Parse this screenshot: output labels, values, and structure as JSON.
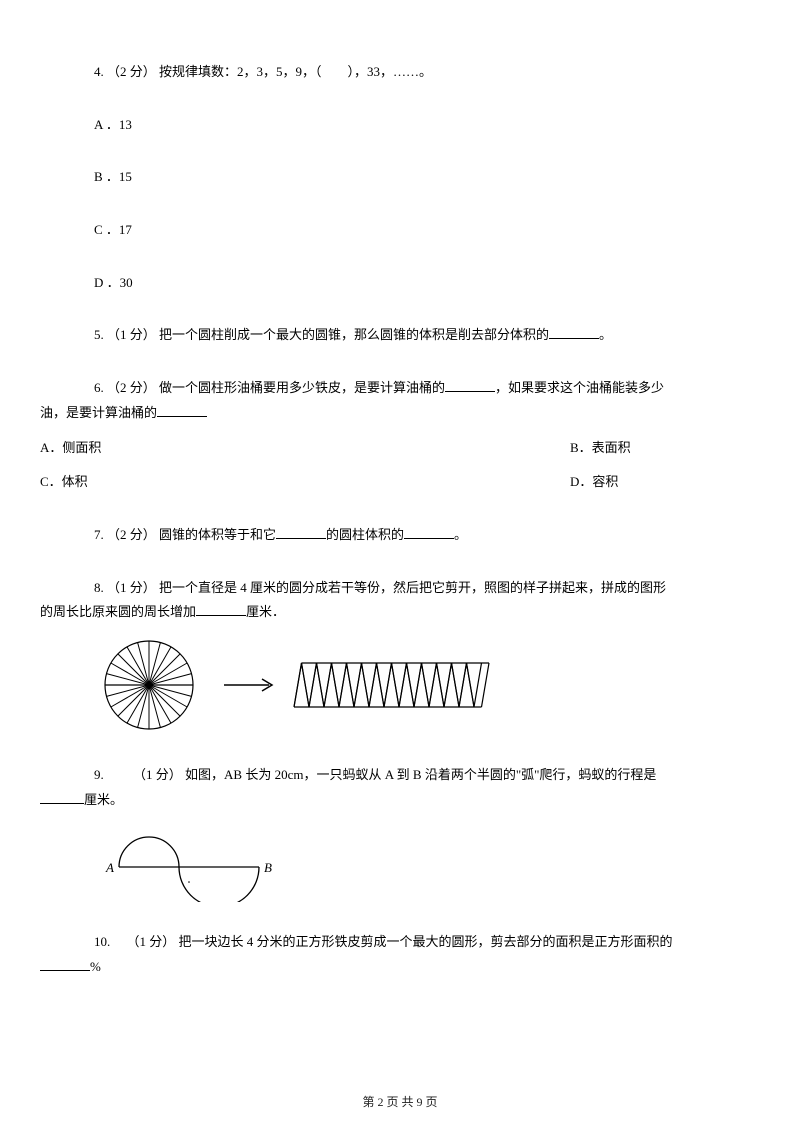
{
  "q4": {
    "num": "4.",
    "pts": "（2 分）",
    "text": "按规律填数：2，3，5，9，（　　），33，……。",
    "opts": {
      "a": "A ．13",
      "b": "B ．15",
      "c": "C ．17",
      "d": "D ．30"
    }
  },
  "q5": {
    "num": "5.",
    "pts": "（1 分）",
    "text_a": "把一个圆柱削成一个最大的圆锥，那么圆锥的体积是削去部分体积的",
    "text_b": "。"
  },
  "q6": {
    "num": "6.",
    "pts": "（2 分）",
    "text_a": "做一个圆柱形油桶要用多少铁皮，是要计算油桶的",
    "text_b": "，如果要求这个油桶能装多少",
    "text_c": "油，是要计算油桶的",
    "opts": {
      "a": "A．侧面积",
      "b": "B．表面积",
      "c": "C．体积",
      "d": "D．容积"
    }
  },
  "q7": {
    "num": "7.",
    "pts": "（2 分）",
    "text_a": "圆锥的体积等于和它",
    "text_b": "的圆柱体积的",
    "text_c": "。"
  },
  "q8": {
    "num": "8.",
    "pts": "（1 分）",
    "text_a": "把一个直径是 4 厘米的圆分成若干等份，然后把它剪开，照图的样子拼起来，拼成的图形",
    "text_b": "的周长比原来圆的周长增加",
    "text_c": "厘米．"
  },
  "q9": {
    "num": "9.",
    "pts": "（1 分）",
    "text_a": "如图，AB 长为 20cm，一只蚂蚁从 A 到 B 沿着两个半圆的\"弧\"爬行，蚂蚁的行程是",
    "text_b": "厘米。",
    "labelA": "A",
    "labelB": "B"
  },
  "q10": {
    "num": "10.",
    "pts": "（1 分）",
    "text_a": "把一块边长 4 分米的正方形铁皮剪成一个最大的圆形，剪去部分的面积是正方形面积的",
    "text_b": "%"
  },
  "footer": "第 2 页 共 9 页",
  "style": {
    "stroke": "#000000",
    "fill": "#ffffff",
    "font_body": 13,
    "font_footer": 12
  }
}
